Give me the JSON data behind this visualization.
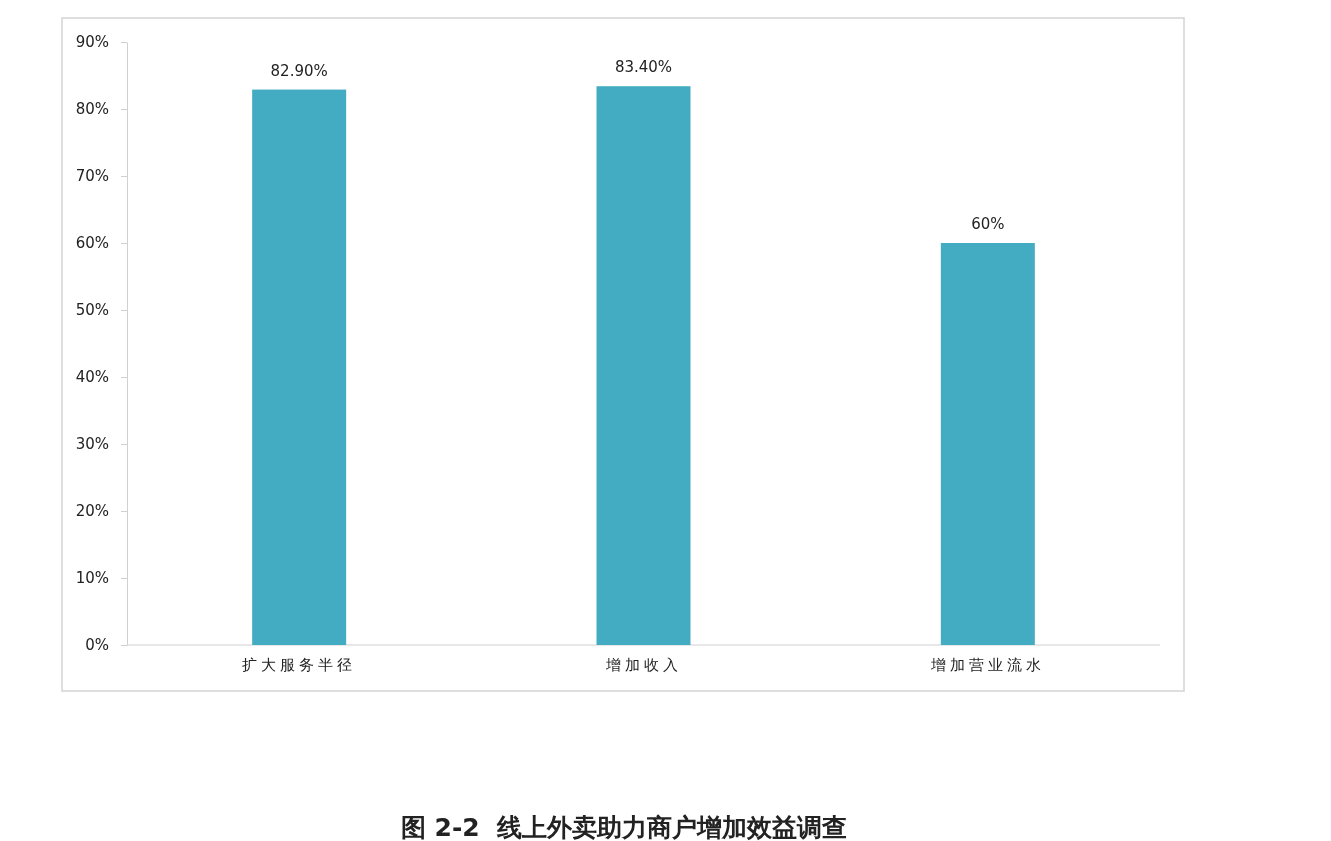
{
  "chart_data": {
    "type": "bar",
    "title": "图 2-2  线上外卖助力商户增加效益调查",
    "categories": [
      "扩大服务半径",
      "增加收入",
      "增加营业流水"
    ],
    "values": [
      82.9,
      83.4,
      60
    ],
    "color": "#43acc3",
    "value_labels": [
      "82.90%",
      "83.40%",
      "60%"
    ],
    "ylim": [
      0,
      90
    ],
    "yticks": [
      {
        "value": 0,
        "label": "0%"
      },
      {
        "value": 10,
        "label": "10%"
      },
      {
        "value": 20,
        "label": "20%"
      },
      {
        "value": 30,
        "label": "30%"
      },
      {
        "value": 40,
        "label": "40%"
      },
      {
        "value": 50,
        "label": "50%"
      },
      {
        "value": 60,
        "label": "60%"
      },
      {
        "value": 70,
        "label": "70%"
      },
      {
        "value": 80,
        "label": "80%"
      },
      {
        "value": 90,
        "label": "90%"
      }
    ]
  }
}
